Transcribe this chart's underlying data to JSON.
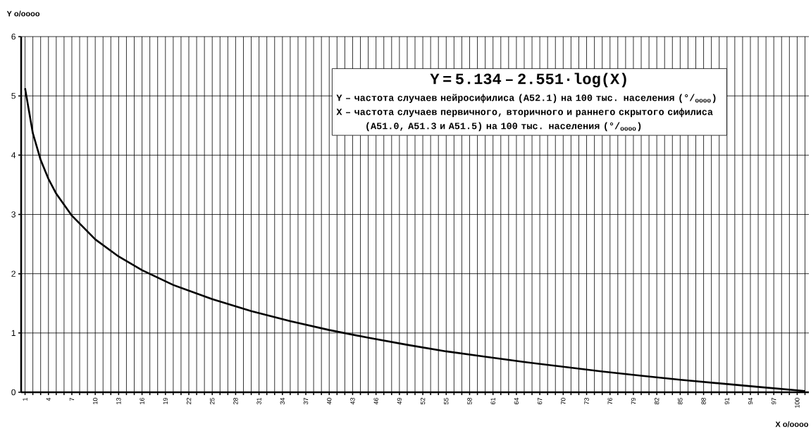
{
  "chart_data": {
    "type": "line",
    "xlabel": "**X** o/oooo",
    "ylabel": "**Y** o/oooo",
    "annotations": [
      "Y = 5.134 – 2.551·log(X)",
      "**Y** – частота случаев нейросифилиса (A52.1) на 100 тыс. населения (°/$_{oooo}$)",
      "**X** – частота случаев первичного, вторичного и раннего скрытого сифилиса (A51.0, A51.3 и A51.5) на 100 тыс. населения (°/$_{oooo}$)"
    ],
    "x": [
      1,
      2,
      3,
      4,
      5,
      7,
      10,
      13,
      16,
      20,
      25,
      30,
      35,
      40,
      45,
      50,
      55,
      60,
      65,
      70,
      75,
      80,
      85,
      90,
      95,
      101
    ],
    "values": [
      5.13,
      4.37,
      3.92,
      3.6,
      3.35,
      2.98,
      2.58,
      2.29,
      2.06,
      1.81,
      1.57,
      1.37,
      1.2,
      1.05,
      0.92,
      0.8,
      0.69,
      0.6,
      0.51,
      0.43,
      0.35,
      0.28,
      0.21,
      0.15,
      0.09,
      0.02
    ],
    "color": "#000000",
    "xlim": [
      0.5,
      101.5
    ],
    "ylim": [
      0,
      6
    ],
    "yticks": [
      0,
      1,
      2,
      3,
      4,
      5,
      6
    ],
    "grid": true,
    "xticks": [
      1,
      {
        "value": 2,
        "label": null
      },
      {
        "value": 3,
        "label": null
      },
      4,
      {
        "value": 5,
        "label": null
      },
      {
        "value": 6,
        "label": null
      },
      7,
      {
        "value": 8,
        "label": null
      },
      {
        "value": 9,
        "label": null
      },
      10,
      {
        "value": 11,
        "label": null
      },
      {
        "value": 12,
        "label": null
      },
      13,
      {
        "value": 14,
        "label": null
      },
      {
        "value": 15,
        "label": null
      },
      16,
      {
        "value": 17,
        "label": null
      },
      {
        "value": 18,
        "label": null
      },
      19,
      {
        "value": 20,
        "label": null
      },
      {
        "value": 21,
        "label": null
      },
      22,
      {
        "value": 23,
        "label": null
      },
      {
        "value": 24,
        "label": null
      },
      25,
      {
        "value": 26,
        "label": null
      },
      {
        "value": 27,
        "label": null
      },
      28,
      {
        "value": 29,
        "label": null
      },
      {
        "value": 30,
        "label": null
      },
      31,
      {
        "value": 32,
        "label": null
      },
      {
        "value": 33,
        "label": null
      },
      34,
      {
        "value": 35,
        "label": null
      },
      {
        "value": 36,
        "label": null
      },
      37,
      {
        "value": 38,
        "label": null
      },
      {
        "value": 39,
        "label": null
      },
      40,
      {
        "value": 41,
        "label": null
      },
      {
        "value": 42,
        "label": null
      },
      43,
      {
        "value": 44,
        "label": null
      },
      {
        "value": 45,
        "label": null
      },
      46,
      {
        "value": 47,
        "label": null
      },
      {
        "value": 48,
        "label": null
      },
      49,
      {
        "value": 50,
        "label": null
      },
      {
        "value": 51,
        "label": null
      },
      52,
      {
        "value": 53,
        "label": null
      },
      {
        "value": 54,
        "label": null
      },
      55,
      {
        "value": 56,
        "label": null
      },
      {
        "value": 57,
        "label": null
      },
      58,
      {
        "value": 59,
        "label": null
      },
      {
        "value": 60,
        "label": null
      },
      61,
      {
        "value": 62,
        "label": null
      },
      {
        "value": 63,
        "label": null
      },
      64,
      {
        "value": 65,
        "label": null
      },
      {
        "value": 66,
        "label": null
      },
      67,
      {
        "value": 68,
        "label": null
      },
      {
        "value": 69,
        "label": null
      },
      70,
      {
        "value": 71,
        "label": null
      },
      {
        "value": 72,
        "label": null
      },
      73,
      {
        "value": 74,
        "label": null
      },
      {
        "value": 75,
        "label": null
      },
      76,
      {
        "value": 77,
        "label": null
      },
      {
        "value": 78,
        "label": null
      },
      79,
      {
        "value": 80,
        "label": null
      },
      {
        "value": 81,
        "label": null
      },
      82,
      {
        "value": 83,
        "label": null
      },
      {
        "value": 84,
        "label": null
      },
      85,
      {
        "value": 86,
        "label": null
      },
      {
        "value": 87,
        "label": null
      },
      88,
      {
        "value": 89,
        "label": null
      },
      {
        "value": 90,
        "label": null
      },
      91,
      {
        "value": 92,
        "label": null
      },
      {
        "value": 93,
        "label": null
      },
      94,
      {
        "value": 95,
        "label": null
      },
      {
        "value": 96,
        "label": null
      },
      97,
      {
        "value": 98,
        "label": null
      },
      {
        "value": 99,
        "label": null
      },
      100,
      {
        "value": 101,
        "label": null
      }
    ]
  }
}
